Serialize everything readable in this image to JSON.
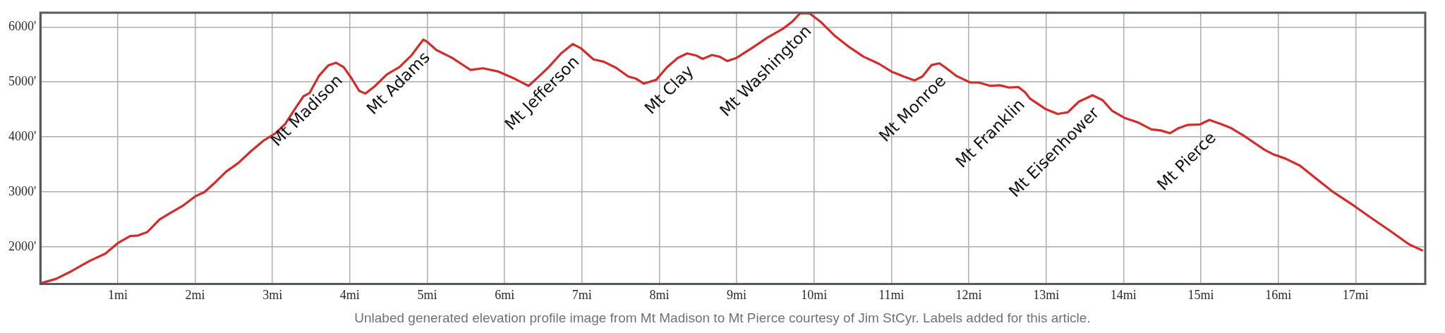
{
  "chart_data": {
    "type": "line",
    "color": "#d42b2b",
    "marker": "none",
    "line_style": "solid",
    "grid": true,
    "xlim": [
      0,
      17.9
    ],
    "ylim": [
      1330,
      6260
    ],
    "xticks": [
      {
        "value": 1,
        "label": "1mi"
      },
      {
        "value": 2,
        "label": "2mi"
      },
      {
        "value": 3,
        "label": "3mi"
      },
      {
        "value": 4,
        "label": "4mi"
      },
      {
        "value": 5,
        "label": "5mi"
      },
      {
        "value": 6,
        "label": "6mi"
      },
      {
        "value": 7,
        "label": "7mi"
      },
      {
        "value": 8,
        "label": "8mi"
      },
      {
        "value": 9,
        "label": "9mi"
      },
      {
        "value": 10,
        "label": "10mi"
      },
      {
        "value": 11,
        "label": "11mi"
      },
      {
        "value": 12,
        "label": "12mi"
      },
      {
        "value": 13,
        "label": "13mi"
      },
      {
        "value": 14,
        "label": "14mi"
      },
      {
        "value": 15,
        "label": "15mi"
      },
      {
        "value": 16,
        "label": "16mi"
      },
      {
        "value": 17,
        "label": "17mi"
      }
    ],
    "yticks": [
      {
        "value": 2000,
        "label": "2000'"
      },
      {
        "value": 3000,
        "label": "3000'"
      },
      {
        "value": 4000,
        "label": "4000'"
      },
      {
        "value": 5000,
        "label": "5000'"
      },
      {
        "value": 6000,
        "label": "6000'"
      }
    ],
    "x": [
      0,
      0.2,
      0.4,
      0.64,
      0.84,
      1.0,
      1.16,
      1.26,
      1.38,
      1.54,
      1.68,
      1.84,
      2.0,
      2.12,
      2.24,
      2.4,
      2.56,
      2.72,
      2.88,
      3.04,
      3.16,
      3.28,
      3.4,
      3.48,
      3.6,
      3.72,
      3.82,
      3.92,
      4.02,
      4.12,
      4.2,
      4.32,
      4.48,
      4.64,
      4.8,
      4.9,
      4.95,
      5.0,
      5.12,
      5.32,
      5.44,
      5.56,
      5.72,
      5.92,
      6.13,
      6.31,
      6.45,
      6.57,
      6.73,
      6.88,
      6.99,
      7.15,
      7.28,
      7.44,
      7.6,
      7.7,
      7.8,
      7.96,
      8.1,
      8.24,
      8.36,
      8.48,
      8.56,
      8.68,
      8.78,
      8.88,
      9.0,
      9.2,
      9.4,
      9.6,
      9.72,
      9.82,
      9.94,
      10.08,
      10.26,
      10.44,
      10.64,
      10.84,
      11.0,
      11.16,
      11.3,
      11.4,
      11.52,
      11.62,
      11.72,
      11.84,
      12.02,
      12.13,
      12.28,
      12.4,
      12.52,
      12.64,
      12.73,
      12.79,
      12.99,
      13.15,
      13.28,
      13.42,
      13.6,
      13.73,
      13.85,
      14.01,
      14.18,
      14.36,
      14.48,
      14.6,
      14.71,
      14.83,
      14.99,
      15.11,
      15.27,
      15.38,
      15.58,
      15.82,
      15.93,
      16.09,
      16.28,
      16.52,
      16.71,
      16.99,
      17.18,
      17.45,
      17.69,
      17.86
    ],
    "values": [
      1340,
      1420,
      1560,
      1750,
      1880,
      2070,
      2200,
      2210,
      2270,
      2500,
      2620,
      2750,
      2920,
      3000,
      3150,
      3370,
      3530,
      3740,
      3930,
      4070,
      4230,
      4490,
      4740,
      4800,
      5110,
      5300,
      5350,
      5270,
      5070,
      4840,
      4790,
      4920,
      5140,
      5270,
      5490,
      5680,
      5770,
      5730,
      5580,
      5440,
      5330,
      5220,
      5250,
      5190,
      5060,
      4930,
      5110,
      5270,
      5520,
      5690,
      5610,
      5410,
      5370,
      5260,
      5100,
      5060,
      4970,
      5040,
      5270,
      5440,
      5520,
      5480,
      5420,
      5490,
      5460,
      5380,
      5440,
      5620,
      5810,
      5970,
      6100,
      6250,
      6250,
      6100,
      5850,
      5650,
      5460,
      5330,
      5190,
      5100,
      5030,
      5100,
      5310,
      5340,
      5240,
      5110,
      4990,
      4990,
      4930,
      4940,
      4900,
      4910,
      4810,
      4700,
      4510,
      4420,
      4450,
      4640,
      4760,
      4670,
      4480,
      4350,
      4270,
      4140,
      4120,
      4070,
      4160,
      4220,
      4230,
      4310,
      4230,
      4170,
      4000,
      3770,
      3690,
      3610,
      3480,
      3210,
      3000,
      2740,
      2550,
      2290,
      2050,
      1940
    ],
    "annotations": [
      {
        "text": "Mt Madison",
        "x": 3.82,
        "y": 5350
      },
      {
        "text": "Mt Adams",
        "x": 4.95,
        "y": 5770
      },
      {
        "text": "Mt Jefferson",
        "x": 6.88,
        "y": 5690
      },
      {
        "text": "Mt Clay",
        "x": 8.36,
        "y": 5520
      },
      {
        "text": "Mt Washington",
        "x": 9.88,
        "y": 6250
      },
      {
        "text": "Mt Monroe",
        "x": 11.62,
        "y": 5340
      },
      {
        "text": "Mt Franklin",
        "x": 12.64,
        "y": 4910
      },
      {
        "text": "Mt Eisenhower",
        "x": 13.6,
        "y": 4760
      },
      {
        "text": "Mt Pierce",
        "x": 15.11,
        "y": 4310
      },
      "Unlabed generated elevation profile image from Mt Madison to Mt Pierce courtesy of Jim StCyr. Labels added for this article."
    ]
  }
}
